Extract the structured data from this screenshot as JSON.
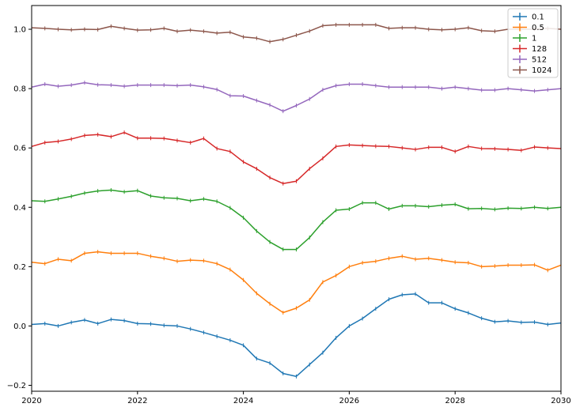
{
  "chart_data": {
    "type": "line",
    "title": "",
    "xlabel": "",
    "ylabel": "",
    "xlim": [
      2020,
      2030
    ],
    "ylim": [
      -0.22,
      1.08
    ],
    "xticks": [
      2020,
      2022,
      2024,
      2026,
      2028,
      2030
    ],
    "xtick_labels": [
      "2020",
      "2022",
      "2024",
      "2026",
      "2028",
      "2030"
    ],
    "yticks": [
      -0.2,
      0.0,
      0.2,
      0.4,
      0.6,
      0.8,
      1.0
    ],
    "ytick_labels": [
      "−0.2",
      "0.0",
      "0.2",
      "0.4",
      "0.6",
      "0.8",
      "1.0"
    ],
    "grid": false,
    "legend_position": "top-right",
    "x": [
      2020.0,
      2020.25,
      2020.5,
      2020.75,
      2021.0,
      2021.25,
      2021.5,
      2021.75,
      2022.0,
      2022.25,
      2022.5,
      2022.75,
      2023.0,
      2023.25,
      2023.5,
      2023.75,
      2024.0,
      2024.25,
      2024.5,
      2024.75,
      2025.0,
      2025.25,
      2025.5,
      2025.75,
      2026.0,
      2026.25,
      2026.5,
      2026.75,
      2027.0,
      2027.25,
      2027.5,
      2027.75,
      2028.0,
      2028.25,
      2028.5,
      2028.75,
      2029.0,
      2029.25,
      2029.5,
      2029.75,
      2030.0
    ],
    "series": [
      {
        "name": "0.1",
        "color": "#1f77b4",
        "values": [
          0.005,
          0.008,
          0.0,
          0.012,
          0.02,
          0.008,
          0.022,
          0.018,
          0.008,
          0.007,
          0.002,
          0.0,
          -0.01,
          -0.022,
          -0.035,
          -0.048,
          -0.065,
          -0.11,
          -0.125,
          -0.16,
          -0.17,
          -0.13,
          -0.09,
          -0.04,
          0.0,
          0.025,
          0.058,
          0.09,
          0.105,
          0.108,
          0.078,
          0.078,
          0.058,
          0.044,
          0.026,
          0.014,
          0.017,
          0.012,
          0.013,
          0.005,
          0.01
        ]
      },
      {
        "name": "0.5",
        "color": "#ff7f0e",
        "values": [
          0.215,
          0.21,
          0.225,
          0.22,
          0.245,
          0.25,
          0.245,
          0.245,
          0.245,
          0.235,
          0.228,
          0.218,
          0.222,
          0.22,
          0.21,
          0.19,
          0.155,
          0.11,
          0.075,
          0.045,
          0.06,
          0.088,
          0.148,
          0.17,
          0.2,
          0.213,
          0.218,
          0.228,
          0.235,
          0.225,
          0.228,
          0.222,
          0.215,
          0.213,
          0.2,
          0.202,
          0.205,
          0.205,
          0.206,
          0.188,
          0.205
        ]
      },
      {
        "name": "1",
        "color": "#2ca02c",
        "values": [
          0.422,
          0.42,
          0.428,
          0.437,
          0.448,
          0.455,
          0.458,
          0.452,
          0.456,
          0.438,
          0.432,
          0.43,
          0.422,
          0.428,
          0.42,
          0.398,
          0.365,
          0.32,
          0.283,
          0.258,
          0.258,
          0.298,
          0.35,
          0.39,
          0.394,
          0.415,
          0.415,
          0.394,
          0.405,
          0.405,
          0.402,
          0.407,
          0.41,
          0.395,
          0.396,
          0.393,
          0.397,
          0.396,
          0.4,
          0.396,
          0.4
        ]
      },
      {
        "name": "128",
        "color": "#d62728",
        "values": [
          0.605,
          0.618,
          0.622,
          0.63,
          0.642,
          0.645,
          0.638,
          0.652,
          0.633,
          0.633,
          0.632,
          0.625,
          0.618,
          0.632,
          0.598,
          0.588,
          0.553,
          0.53,
          0.5,
          0.48,
          0.488,
          0.53,
          0.565,
          0.605,
          0.61,
          0.608,
          0.606,
          0.605,
          0.6,
          0.595,
          0.602,
          0.602,
          0.588,
          0.605,
          0.598,
          0.597,
          0.595,
          0.592,
          0.603,
          0.6,
          0.598
        ]
      },
      {
        "name": "512",
        "color": "#9467bd",
        "values": [
          0.805,
          0.815,
          0.808,
          0.812,
          0.82,
          0.813,
          0.812,
          0.808,
          0.812,
          0.812,
          0.812,
          0.81,
          0.812,
          0.806,
          0.797,
          0.776,
          0.775,
          0.76,
          0.745,
          0.724,
          0.743,
          0.765,
          0.796,
          0.81,
          0.815,
          0.815,
          0.81,
          0.805,
          0.805,
          0.805,
          0.805,
          0.8,
          0.805,
          0.8,
          0.795,
          0.795,
          0.8,
          0.796,
          0.792,
          0.796,
          0.8
        ]
      },
      {
        "name": "1024",
        "color": "#8c564b",
        "values": [
          1.005,
          1.003,
          1.0,
          0.998,
          1.0,
          0.999,
          1.01,
          1.003,
          0.997,
          0.998,
          1.003,
          0.993,
          0.997,
          0.993,
          0.987,
          0.99,
          0.974,
          0.97,
          0.958,
          0.966,
          0.98,
          0.994,
          1.012,
          1.015,
          1.015,
          1.015,
          1.015,
          1.003,
          1.005,
          1.005,
          1.0,
          0.998,
          1.0,
          1.005,
          0.995,
          0.993,
          1.0,
          1.0,
          1.0,
          1.003,
          1.0
        ]
      }
    ]
  }
}
